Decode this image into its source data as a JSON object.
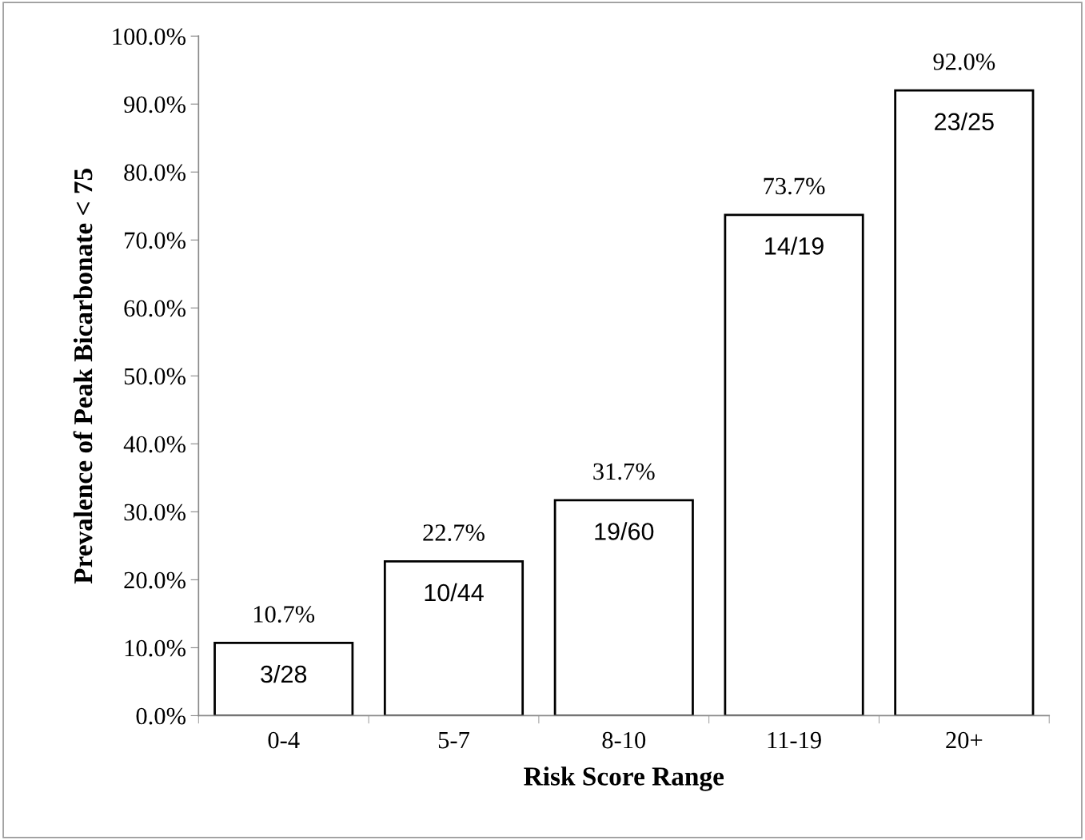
{
  "chart_data": {
    "type": "bar",
    "xlabel": "Risk Score Range",
    "ylabel": "Prevalence of Peak Bicarbonate < 75",
    "categories": [
      "0-4",
      "5-7",
      "8-10",
      "11-19",
      "20+"
    ],
    "values": [
      10.7,
      22.7,
      31.7,
      73.7,
      92.0
    ],
    "value_labels": [
      "10.7%",
      "22.7%",
      "31.7%",
      "73.7%",
      "92.0%"
    ],
    "color": "#ffffff",
    "ylim": [
      0,
      100
    ],
    "yticks": [
      {
        "value": 0,
        "label": "0.0%"
      },
      {
        "value": 10,
        "label": "10.0%"
      },
      {
        "value": 20,
        "label": "20.0%"
      },
      {
        "value": 30,
        "label": "30.0%"
      },
      {
        "value": 40,
        "label": "40.0%"
      },
      {
        "value": 50,
        "label": "50.0%"
      },
      {
        "value": 60,
        "label": "60.0%"
      },
      {
        "value": 70,
        "label": "70.0%"
      },
      {
        "value": 80,
        "label": "80.0%"
      },
      {
        "value": 90,
        "label": "90.0%"
      },
      {
        "value": 100,
        "label": "100.0%"
      }
    ],
    "grid": false,
    "legend": false,
    "annotations": [
      "3/28",
      "10/44",
      "19/60",
      "14/19",
      "23/25"
    ]
  }
}
